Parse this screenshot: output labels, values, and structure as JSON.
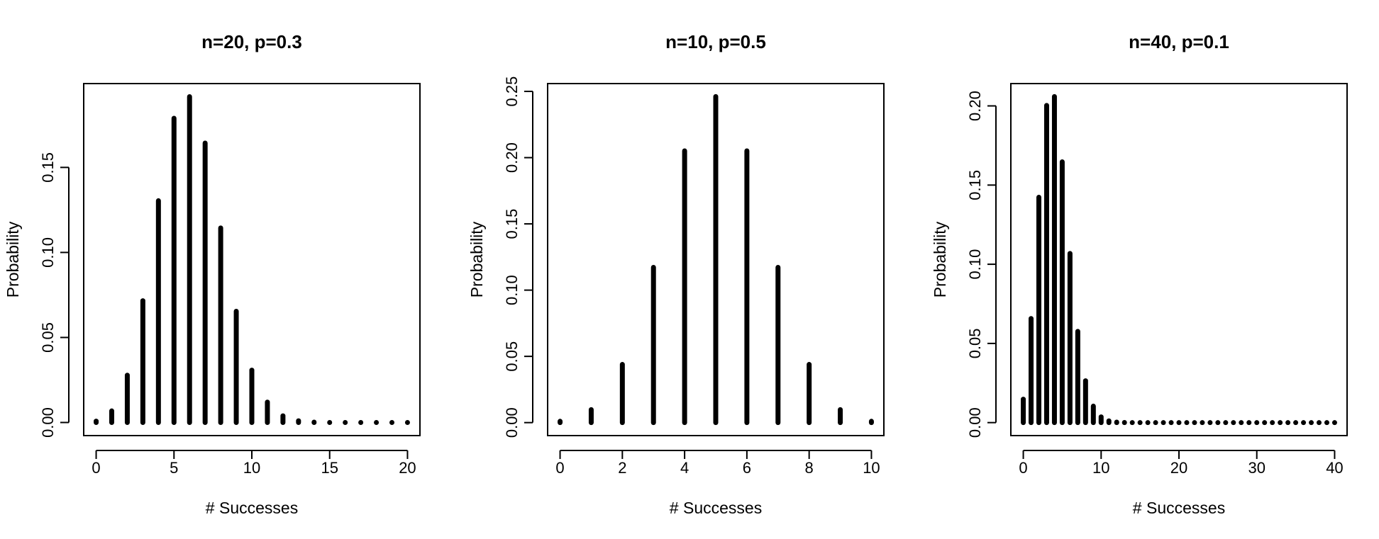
{
  "chart_data": [
    {
      "type": "bar",
      "title": "n=20, p=0.3",
      "xlabel": "# Successes",
      "ylabel": "Probability",
      "x": [
        0,
        1,
        2,
        3,
        4,
        5,
        6,
        7,
        8,
        9,
        10,
        11,
        12,
        13,
        14,
        15,
        16,
        17,
        18,
        19,
        20
      ],
      "values": [
        0.0008,
        0.0068,
        0.0278,
        0.0716,
        0.1304,
        0.1789,
        0.1916,
        0.1643,
        0.1144,
        0.0654,
        0.0308,
        0.012,
        0.0039,
        0.001,
        0.0002,
        0.0,
        0.0,
        0.0,
        0.0,
        0.0,
        0.0
      ],
      "xlim": [
        -0.8,
        20.8
      ],
      "ylim": [
        -0.0077,
        0.1993
      ],
      "xticks": [
        0,
        5,
        10,
        15,
        20
      ],
      "xtick_labels": [
        "0",
        "5",
        "10",
        "15",
        "20"
      ],
      "yticks": [
        0,
        0.05,
        0.1,
        0.15
      ],
      "ytick_labels": [
        "0.00",
        "0.05",
        "0.10",
        "0.15"
      ],
      "grid": false,
      "legend": "none"
    },
    {
      "type": "bar",
      "title": "n=10, p=0.5",
      "xlabel": "# Successes",
      "ylabel": "Probability",
      "x": [
        0,
        1,
        2,
        3,
        4,
        5,
        6,
        7,
        8,
        9,
        10
      ],
      "values": [
        0.001,
        0.0098,
        0.0439,
        0.1172,
        0.2051,
        0.2461,
        0.2051,
        0.1172,
        0.0439,
        0.0098,
        0.001
      ],
      "xlim": [
        -0.4,
        10.4
      ],
      "ylim": [
        -0.0098,
        0.2559
      ],
      "xticks": [
        0,
        2,
        4,
        6,
        8,
        10
      ],
      "xtick_labels": [
        "0",
        "2",
        "4",
        "6",
        "8",
        "10"
      ],
      "yticks": [
        0,
        0.05,
        0.1,
        0.15,
        0.2,
        0.25
      ],
      "ytick_labels": [
        "0.00",
        "0.05",
        "0.10",
        "0.15",
        "0.20",
        "0.25"
      ],
      "grid": false,
      "legend": "none"
    },
    {
      "type": "bar",
      "title": "n=40, p=0.1",
      "xlabel": "# Successes",
      "ylabel": "Probability",
      "x": [
        0,
        1,
        2,
        3,
        4,
        5,
        6,
        7,
        8,
        9,
        10,
        11,
        12,
        13,
        14,
        15,
        16,
        17,
        18,
        19,
        20,
        21,
        22,
        23,
        24,
        25,
        26,
        27,
        28,
        29,
        30,
        31,
        32,
        33,
        34,
        35,
        36,
        37,
        38,
        39,
        40
      ],
      "values": [
        0.0148,
        0.0657,
        0.1423,
        0.2003,
        0.2059,
        0.1647,
        0.1068,
        0.0576,
        0.0264,
        0.0104,
        0.0036,
        0.0011,
        0.0003,
        0.0001,
        0,
        0,
        0,
        0,
        0,
        0,
        0,
        0,
        0,
        0,
        0,
        0,
        0,
        0,
        0,
        0,
        0,
        0,
        0,
        0,
        0,
        0,
        0,
        0,
        0,
        0,
        0
      ],
      "xlim": [
        -1.6,
        41.6
      ],
      "ylim": [
        -0.0082,
        0.2141
      ],
      "xticks": [
        0,
        10,
        20,
        30,
        40
      ],
      "xtick_labels": [
        "0",
        "10",
        "20",
        "30",
        "40"
      ],
      "yticks": [
        0,
        0.05,
        0.1,
        0.15,
        0.2
      ],
      "ytick_labels": [
        "0.00",
        "0.05",
        "0.10",
        "0.15",
        "0.20"
      ],
      "grid": false,
      "legend": "none"
    }
  ]
}
